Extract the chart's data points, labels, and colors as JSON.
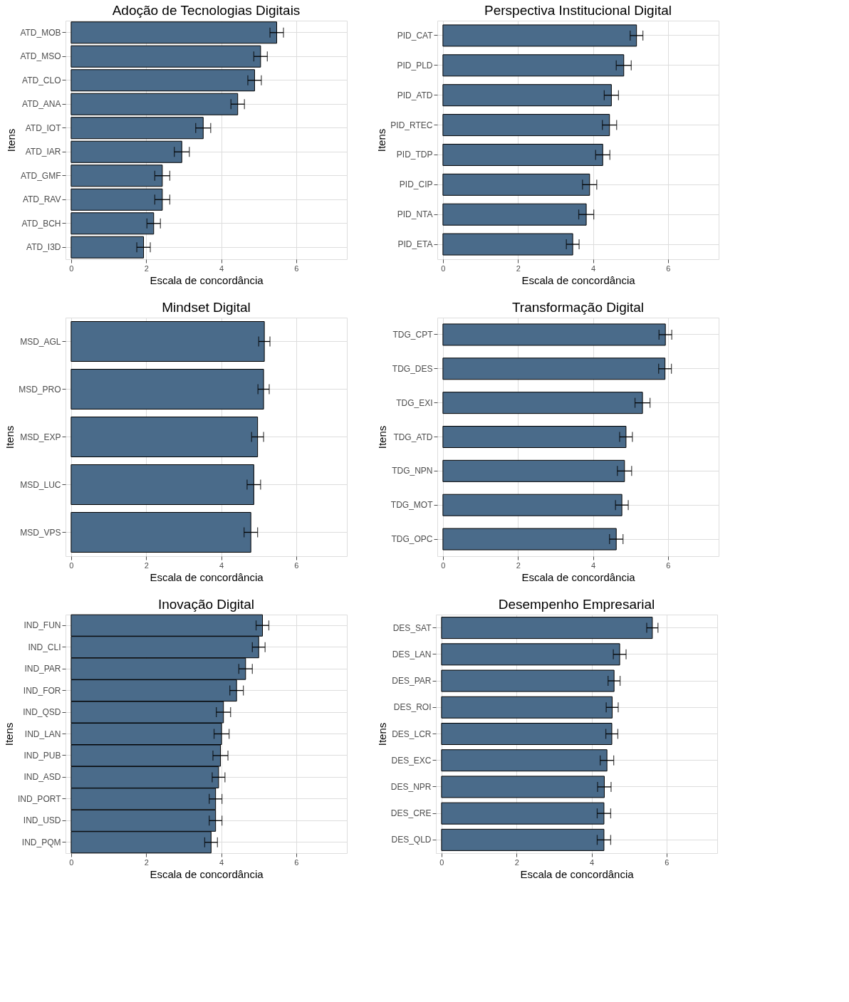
{
  "chart_data": [
    {
      "type": "bar",
      "orientation": "horizontal",
      "title": "Adoção de Tecnologias Digitais",
      "xlabel": "Escala de concordância",
      "ylabel": "Itens",
      "color": "#4a6b8a",
      "grid": true,
      "xlim": [
        -0.15,
        7.35
      ],
      "xticks": [
        0,
        2,
        4,
        6
      ],
      "categories": [
        "ATD_MOB",
        "ATD_MSO",
        "ATD_CLO",
        "ATD_ANA",
        "ATD_IOT",
        "ATD_IAR",
        "ATD_GMF",
        "ATD_RAV",
        "ATD_BCH",
        "ATD_I3D"
      ],
      "values": [
        5.48,
        5.05,
        4.89,
        4.44,
        3.52,
        2.95,
        2.43,
        2.43,
        2.2,
        1.93
      ],
      "errors": [
        0.18,
        0.18,
        0.18,
        0.18,
        0.2,
        0.2,
        0.2,
        0.2,
        0.18,
        0.18
      ]
    },
    {
      "type": "bar",
      "orientation": "horizontal",
      "title": "Perspectiva Institucional Digital",
      "xlabel": "Escala de concordância",
      "ylabel": "Itens",
      "color": "#4a6b8a",
      "grid": true,
      "xlim": [
        -0.15,
        7.35
      ],
      "xticks": [
        0,
        2,
        4,
        6
      ],
      "categories": [
        "PID_CAT",
        "PID_PLD",
        "PID_ATD",
        "PID_RTEC",
        "PID_TDP",
        "PID_CIP",
        "PID_NTA",
        "PID_ETA"
      ],
      "values": [
        5.16,
        4.82,
        4.49,
        4.44,
        4.26,
        3.91,
        3.82,
        3.46
      ],
      "errors": [
        0.17,
        0.2,
        0.19,
        0.19,
        0.19,
        0.19,
        0.2,
        0.17
      ]
    },
    {
      "type": "bar",
      "orientation": "horizontal",
      "title": "Mindset Digital",
      "xlabel": "Escala de concordância",
      "ylabel": "Itens",
      "color": "#4a6b8a",
      "grid": true,
      "xlim": [
        -0.15,
        7.35
      ],
      "xticks": [
        0,
        2,
        4,
        6
      ],
      "categories": [
        "MSD_AGL",
        "MSD_PRO",
        "MSD_EXP",
        "MSD_LUC",
        "MSD_VPS"
      ],
      "values": [
        5.15,
        5.13,
        4.97,
        4.87,
        4.79
      ],
      "errors": [
        0.15,
        0.15,
        0.16,
        0.18,
        0.18
      ]
    },
    {
      "type": "bar",
      "orientation": "horizontal",
      "title": "Transformação Digital",
      "xlabel": "Escala de concordância",
      "ylabel": "Itens",
      "color": "#4a6b8a",
      "grid": true,
      "xlim": [
        -0.15,
        7.35
      ],
      "xticks": [
        0,
        2,
        4,
        6
      ],
      "categories": [
        "TDG_CPT",
        "TDG_DES",
        "TDG_EXI",
        "TDG_ATD",
        "TDG_NPN",
        "TDG_MOT",
        "TDG_OPC"
      ],
      "values": [
        5.93,
        5.92,
        5.32,
        4.88,
        4.84,
        4.77,
        4.62
      ],
      "errors": [
        0.17,
        0.17,
        0.2,
        0.17,
        0.19,
        0.17,
        0.18
      ]
    },
    {
      "type": "bar",
      "orientation": "horizontal",
      "title": "Inovação Digital",
      "xlabel": "Escala de concordância",
      "ylabel": "Itens",
      "color": "#4a6b8a",
      "grid": true,
      "xlim": [
        -0.15,
        7.35
      ],
      "xticks": [
        0,
        2,
        4,
        6
      ],
      "categories": [
        "IND_FUN",
        "IND_CLI",
        "IND_PAR",
        "IND_FOR",
        "IND_QSD",
        "IND_LAN",
        "IND_PUB",
        "IND_ASD",
        "IND_PORT",
        "IND_USD",
        "IND_PQM"
      ],
      "values": [
        5.1,
        5.0,
        4.65,
        4.41,
        4.06,
        4.01,
        3.98,
        3.93,
        3.85,
        3.85,
        3.73
      ],
      "errors": [
        0.17,
        0.17,
        0.18,
        0.18,
        0.19,
        0.2,
        0.2,
        0.17,
        0.17,
        0.17,
        0.17
      ]
    },
    {
      "type": "bar",
      "orientation": "horizontal",
      "title": "Desempenho Empresarial",
      "xlabel": "Escala de concordância",
      "ylabel": "Itens",
      "color": "#4a6b8a",
      "grid": true,
      "xlim": [
        -0.15,
        7.35
      ],
      "xticks": [
        0,
        2,
        4,
        6
      ],
      "categories": [
        "DES_SAT",
        "DES_LAN",
        "DES_PAR",
        "DES_ROI",
        "DES_LCR",
        "DES_EXC",
        "DES_NPR",
        "DES_CRE",
        "DES_QLD"
      ],
      "values": [
        5.62,
        4.75,
        4.6,
        4.55,
        4.54,
        4.41,
        4.34,
        4.33,
        4.33
      ],
      "errors": [
        0.15,
        0.17,
        0.16,
        0.16,
        0.16,
        0.18,
        0.18,
        0.18,
        0.18
      ]
    }
  ]
}
